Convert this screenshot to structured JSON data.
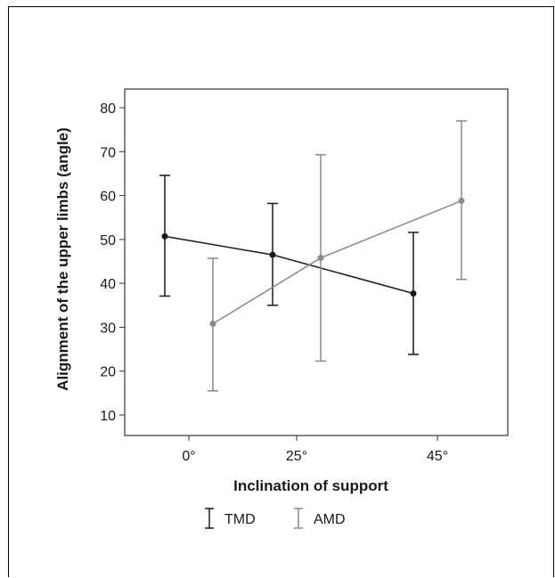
{
  "chart_data": {
    "type": "line",
    "title": "",
    "xlabel": "Inclination of support",
    "ylabel": "Alignment of the upper limbs (angle)",
    "categories": [
      "0°",
      "25°",
      "45°"
    ],
    "ylim": [
      5,
      90
    ],
    "yticks": [
      10,
      20,
      30,
      40,
      50,
      60,
      70,
      80
    ],
    "grid": false,
    "legend_position": "bottom",
    "error_bars": true,
    "series": [
      {
        "name": "TMD",
        "color": "#1a1a1a",
        "values": [
          50.7,
          46.5,
          37.7
        ],
        "lower": [
          37.1,
          35.0,
          23.8
        ],
        "upper": [
          64.6,
          58.2,
          51.6
        ]
      },
      {
        "name": "AMD",
        "color": "#8a8a8a",
        "values": [
          30.8,
          45.8,
          58.8
        ],
        "lower": [
          15.5,
          22.3,
          40.9
        ],
        "upper": [
          45.7,
          69.3,
          77.0
        ]
      }
    ]
  }
}
